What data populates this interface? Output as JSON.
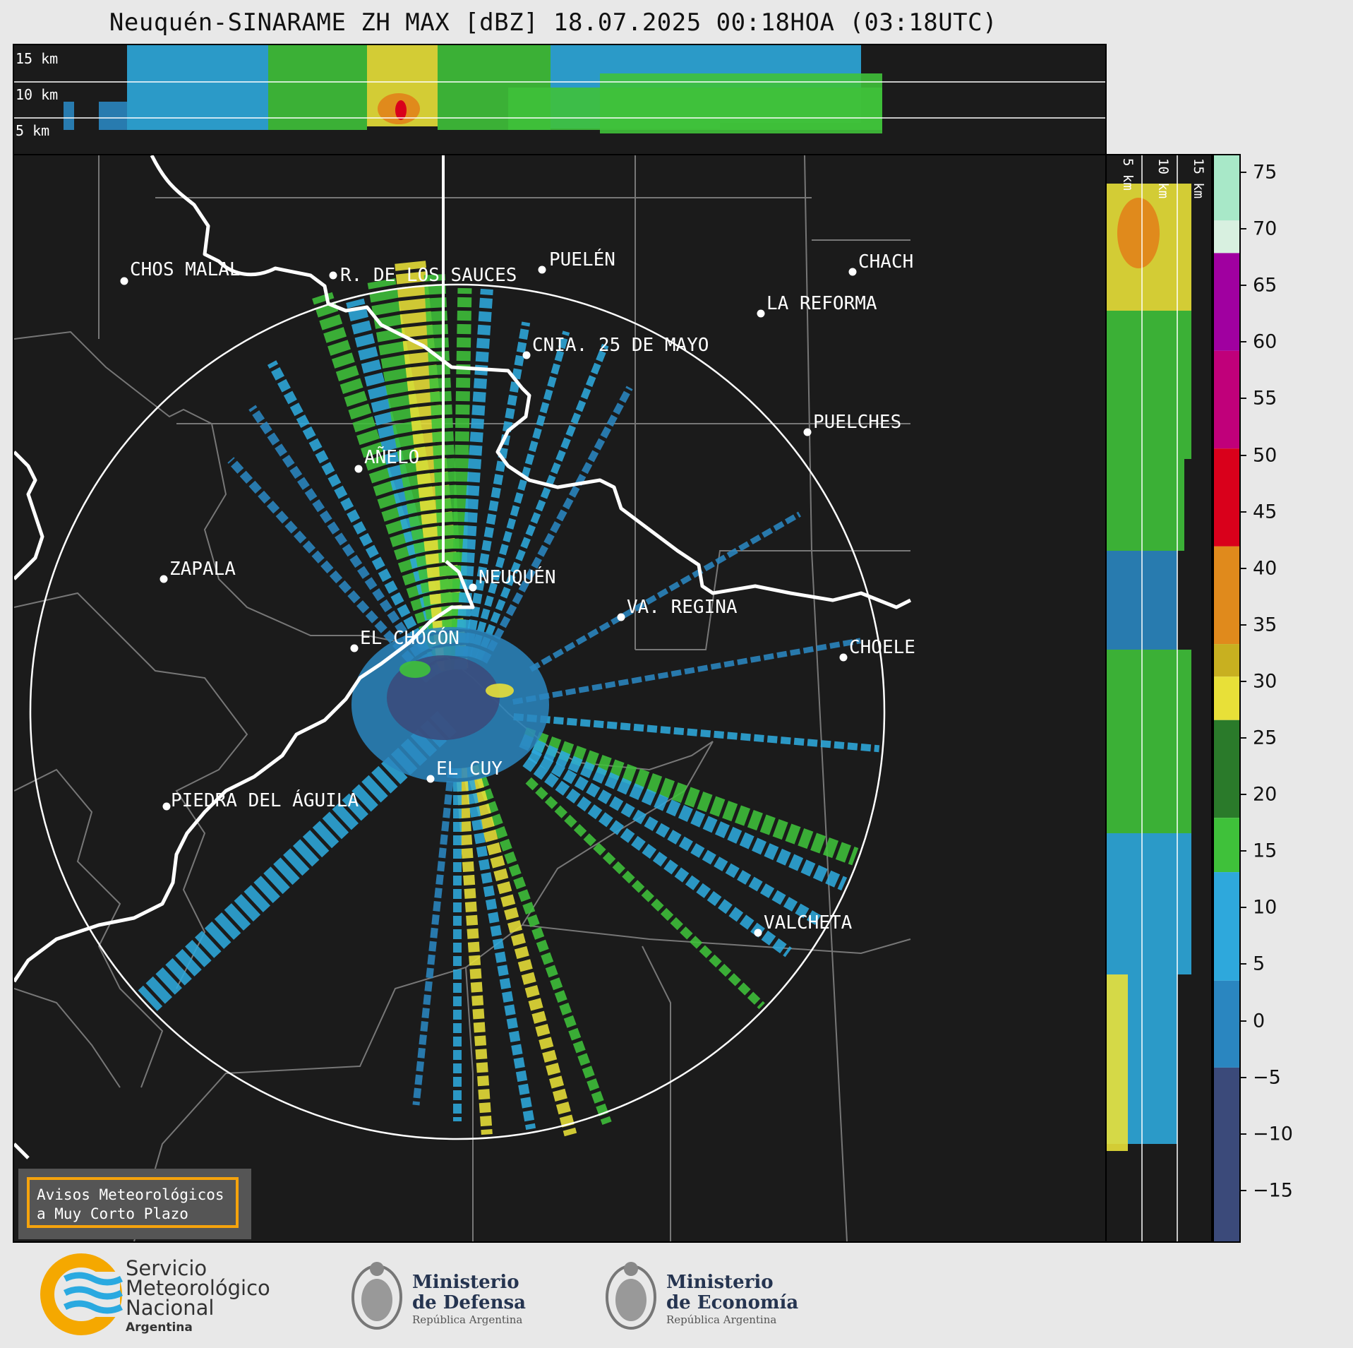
{
  "title": "Neuquén-SINARAME ZH MAX [dBZ] 18.07.2025 00:18HOA (03:18UTC)",
  "top_panel": {
    "height_labels": [
      "15 km",
      "10 km",
      "5 km"
    ]
  },
  "right_panel": {
    "height_labels": [
      "5 km",
      "10 km",
      "15 km"
    ]
  },
  "cities": [
    {
      "name": "CHOS MALAL"
    },
    {
      "name": "R. DE LOS SAUCES"
    },
    {
      "name": "PUELÉN"
    },
    {
      "name": "CHACH"
    },
    {
      "name": "LA REFORMA"
    },
    {
      "name": "CNIA. 25 DE MAYO"
    },
    {
      "name": "PUELCHES"
    },
    {
      "name": "AÑELO"
    },
    {
      "name": "ZAPALA"
    },
    {
      "name": "NEUQUÉN"
    },
    {
      "name": "VA. REGINA"
    },
    {
      "name": "EL CHOCÓN"
    },
    {
      "name": "CHOELE"
    },
    {
      "name": "EL CUY"
    },
    {
      "name": "PIEDRA DEL ÁGUILA"
    },
    {
      "name": "VALCHETA"
    }
  ],
  "colorbar": {
    "unit": "dBZ",
    "ticks": [
      "75",
      "70",
      "65",
      "60",
      "55",
      "50",
      "45",
      "40",
      "35",
      "30",
      "25",
      "20",
      "15",
      "10",
      "5",
      "0",
      "−5",
      "−10",
      "−15"
    ],
    "colors": {
      "below_0": "#3b4a7a",
      "0_15": "#2a86c0",
      "15_20": "#2ea8dc",
      "20_30": "#3fc13a",
      "30_40": "#e8e038",
      "40_45": "#e08a1c",
      "45_50": "#d9001b",
      "50_55": "#c0007a",
      "55_60": "#a000a0",
      "60_plus": "#a8e8c8"
    }
  },
  "warning": {
    "line1": "Avisos Meteorológicos",
    "line2": "a Muy Corto Plazo"
  },
  "footer": {
    "smn_line1": "Servicio",
    "smn_line2": "Meteorológico",
    "smn_line3": "Nacional",
    "smn_line4": "Argentina",
    "defensa_line1": "Ministerio",
    "defensa_line2": "de Defensa",
    "defensa_line3": "República Argentina",
    "economia_line1": "Ministerio",
    "economia_line2": "de Economía",
    "economia_line3": "República Argentina"
  }
}
